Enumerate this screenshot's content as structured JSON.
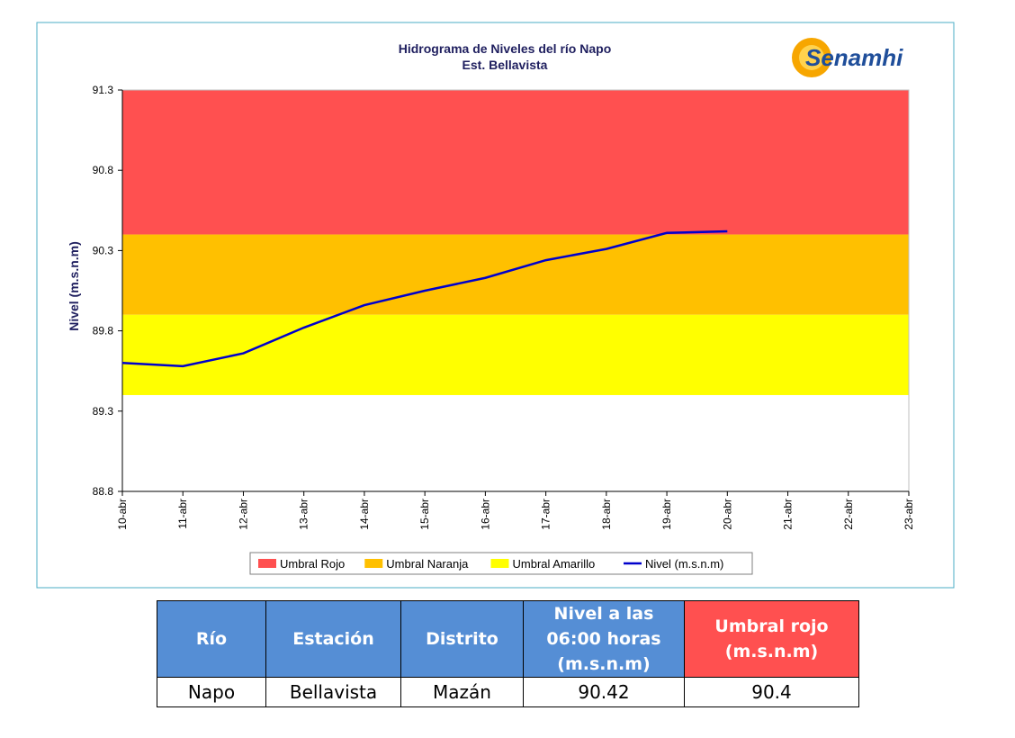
{
  "chart_data": {
    "type": "line",
    "title": "Hidrograma de Niveles del río Napo",
    "subtitle": "Est. Bellavista",
    "logo": "Senamhi",
    "y_label": "Nivel (m.s.n.m)",
    "categories": [
      "10-abr",
      "11-abr",
      "12-abr",
      "13-abr",
      "14-abr",
      "15-abr",
      "16-abr",
      "17-abr",
      "18-abr",
      "19-abr",
      "20-abr",
      "21-abr",
      "22-abr",
      "23-abr"
    ],
    "thresholds": [
      {
        "name": "Umbral Rojo",
        "color": "#ff5050",
        "value": 90.4
      },
      {
        "name": "Umbral Naranja",
        "color": "#ffc000",
        "value": 89.9
      },
      {
        "name": "Umbral Amarillo",
        "color": "#ffff00",
        "value": 89.4
      }
    ],
    "series": [
      {
        "name": "Nivel (m.s.n.m)",
        "color": "#0000cc",
        "values": [
          89.6,
          89.58,
          89.66,
          89.82,
          89.96,
          90.05,
          90.13,
          90.24,
          90.31,
          90.41,
          90.42,
          null,
          null,
          null
        ]
      }
    ],
    "ylim": [
      88.8,
      91.3
    ],
    "yticks": [
      88.8,
      89.3,
      89.8,
      90.3,
      90.8,
      91.3
    ]
  },
  "table": {
    "headers": [
      "Río",
      "Estación",
      "Distrito",
      "Nivel a las 06:00 horas (m.s.n.m)",
      "Umbral rojo (m.s.n.m)"
    ],
    "rows": [
      [
        "Napo",
        "Bellavista",
        "Mazán",
        "90.42",
        "90.4"
      ]
    ]
  }
}
